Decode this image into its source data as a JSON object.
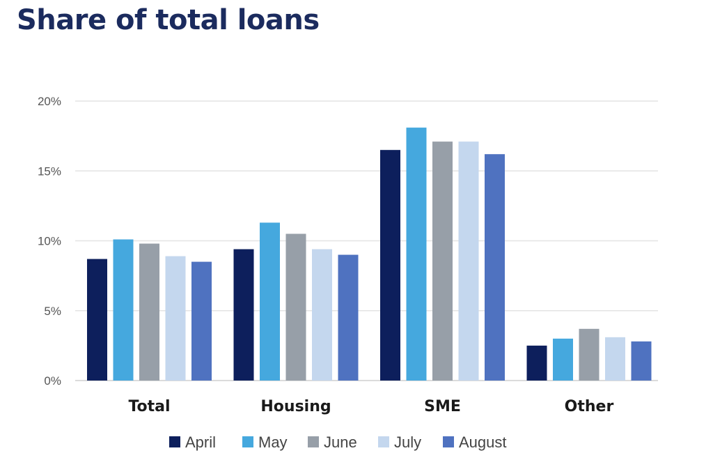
{
  "chart_data": {
    "type": "bar",
    "title": "Share of total loans",
    "xlabel": "",
    "ylabel": "",
    "categories": [
      "Total",
      "Housing",
      "SME",
      "Other"
    ],
    "series": [
      {
        "name": "April",
        "values": [
          8.7,
          9.4,
          16.5,
          2.5
        ],
        "color": "#0d1f5c"
      },
      {
        "name": "May",
        "values": [
          10.1,
          11.3,
          18.1,
          3.0
        ],
        "color": "#45a8de"
      },
      {
        "name": "June",
        "values": [
          9.8,
          10.5,
          17.1,
          3.7
        ],
        "color": "#979fa8"
      },
      {
        "name": "July",
        "values": [
          8.9,
          9.4,
          17.1,
          3.1
        ],
        "color": "#c4d7ee"
      },
      {
        "name": "August",
        "values": [
          8.5,
          9.0,
          16.2,
          2.8
        ],
        "color": "#4f72c0"
      }
    ],
    "ylim": [
      0,
      20
    ],
    "yticks": [
      0,
      5,
      10,
      15,
      20
    ],
    "ytick_labels": [
      "0%",
      "5%",
      "10%",
      "15%",
      "20%"
    ],
    "grid": true,
    "legend": "bottom"
  }
}
